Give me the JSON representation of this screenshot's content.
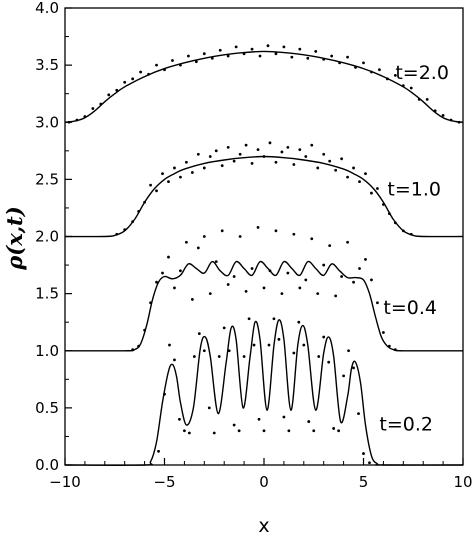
{
  "chart_data": {
    "type": "line",
    "title": "",
    "xlabel": "x",
    "ylabel": "ρ(x,t)",
    "xlim": [
      -10,
      10
    ],
    "ylim": [
      0,
      4
    ],
    "xticks": [
      -10,
      -5,
      0,
      5,
      10
    ],
    "xtick_labels": [
      "−10",
      "−5",
      "0",
      "5",
      "10"
    ],
    "yticks": [
      0,
      0.5,
      1,
      1.5,
      2,
      2.5,
      3,
      3.5,
      4
    ],
    "ytick_labels": [
      "0.0",
      "0.5",
      "1.0",
      "1.5",
      "2.0",
      "2.5",
      "3.0",
      "3.5",
      "4.0"
    ],
    "grid": false,
    "legend": "none",
    "curves": [
      {
        "label": "t=0.2",
        "offset": 0.0,
        "label_at": {
          "x": 5.8,
          "y": 0.3
        },
        "line": {
          "x": [
            -10,
            -6,
            -5.7,
            -5.4,
            -5.1,
            -4.8,
            -4.6,
            -4.4,
            -4.2,
            -3.9,
            -3.55,
            -3.2,
            -2.95,
            -2.7,
            -2.3,
            -1.9,
            -1.65,
            -1.4,
            -1.05,
            -0.7,
            -0.45,
            -0.2,
            0.15,
            0.5,
            0.75,
            1.0,
            1.35,
            1.7,
            1.95,
            2.2,
            2.6,
            3.0,
            3.25,
            3.5,
            3.85,
            4.2,
            4.4,
            4.6,
            4.85,
            5.1,
            5.4,
            5.7,
            6,
            10
          ],
          "y": [
            0,
            0,
            0.03,
            0.2,
            0.55,
            0.82,
            0.88,
            0.78,
            0.55,
            0.35,
            0.5,
            1.02,
            1.12,
            0.95,
            0.45,
            0.9,
            1.2,
            1.1,
            0.5,
            0.95,
            1.25,
            1.1,
            0.48,
            1.05,
            1.27,
            1.1,
            0.48,
            1.05,
            1.22,
            1.05,
            0.48,
            0.98,
            1.12,
            0.95,
            0.38,
            0.6,
            0.85,
            0.9,
            0.72,
            0.35,
            0.08,
            0.01,
            0,
            0
          ]
        },
        "points": {
          "x": [
            -5.3,
            -5.0,
            -4.75,
            -4.5,
            -4.25,
            -4.0,
            -3.75,
            -3.5,
            -3.25,
            -3.0,
            -2.75,
            -2.5,
            -2.25,
            -2.0,
            -1.75,
            -1.5,
            -1.25,
            -1.0,
            -0.75,
            -0.5,
            -0.25,
            0.0,
            0.25,
            0.5,
            0.75,
            1.0,
            1.25,
            1.5,
            1.75,
            2.0,
            2.25,
            2.5,
            2.75,
            3.0,
            3.25,
            3.5,
            3.75,
            4.0,
            4.25,
            4.5,
            4.75,
            5.0,
            5.3
          ],
          "y": [
            0.12,
            0.62,
            1.05,
            0.92,
            0.4,
            0.3,
            0.28,
            0.95,
            1.15,
            1.0,
            0.5,
            0.28,
            0.95,
            1.2,
            1.0,
            0.35,
            0.3,
            0.95,
            1.28,
            1.05,
            0.4,
            0.3,
            1.05,
            1.28,
            1.1,
            0.42,
            0.3,
            0.98,
            1.25,
            1.05,
            0.38,
            0.3,
            0.95,
            1.12,
            0.9,
            0.32,
            0.3,
            0.78,
            1.0,
            0.85,
            0.45,
            0.1,
            0.02
          ]
        }
      },
      {
        "label": "t=0.4",
        "offset": 1.0,
        "label_at": {
          "x": 6.0,
          "y": 1.32
        },
        "line": {
          "x": [
            -10,
            -7,
            -6.5,
            -6.2,
            -5.9,
            -5.6,
            -5.3,
            -5.0,
            -4.6,
            -4.2,
            -3.8,
            -3.4,
            -3.0,
            -2.6,
            -2.2,
            -1.8,
            -1.4,
            -1.0,
            -0.6,
            -0.2,
            0.2,
            0.6,
            1.0,
            1.4,
            1.8,
            2.2,
            2.6,
            3.0,
            3.4,
            3.8,
            4.2,
            4.6,
            5.0,
            5.3,
            5.6,
            5.9,
            6.2,
            6.5,
            7,
            10
          ],
          "y": [
            1.0,
            1.0,
            1.01,
            1.06,
            1.22,
            1.45,
            1.6,
            1.65,
            1.63,
            1.66,
            1.76,
            1.72,
            1.68,
            1.78,
            1.7,
            1.66,
            1.78,
            1.72,
            1.66,
            1.78,
            1.72,
            1.66,
            1.78,
            1.72,
            1.66,
            1.78,
            1.72,
            1.66,
            1.76,
            1.7,
            1.64,
            1.64,
            1.62,
            1.5,
            1.3,
            1.12,
            1.04,
            1.01,
            1.0,
            1.0
          ]
        },
        "points": {
          "x": [
            -6.6,
            -6.3,
            -6.0,
            -5.7,
            -5.4,
            -5.1,
            -4.8,
            -4.5,
            -4.2,
            -3.9,
            -3.6,
            -3.3,
            -3.0,
            -2.7,
            -2.4,
            -2.1,
            -1.8,
            -1.5,
            -1.2,
            -0.9,
            -0.6,
            -0.3,
            0.0,
            0.3,
            0.6,
            0.9,
            1.2,
            1.5,
            1.8,
            2.1,
            2.4,
            2.7,
            3.0,
            3.3,
            3.6,
            3.9,
            4.2,
            4.5,
            4.8,
            5.1,
            5.4,
            5.7,
            6.0,
            6.3,
            6.6
          ],
          "y": [
            1.01,
            1.04,
            1.18,
            1.42,
            1.6,
            1.68,
            1.82,
            1.55,
            1.7,
            1.95,
            1.45,
            1.9,
            2.0,
            1.5,
            1.78,
            2.05,
            1.58,
            1.65,
            2.0,
            1.52,
            1.72,
            2.08,
            1.55,
            1.7,
            2.05,
            1.5,
            1.68,
            2.02,
            1.55,
            1.62,
            1.98,
            1.5,
            1.75,
            1.92,
            1.48,
            1.65,
            1.95,
            1.6,
            1.72,
            1.8,
            1.62,
            1.42,
            1.16,
            1.04,
            1.01
          ]
        }
      },
      {
        "label": "t=1.0",
        "offset": 2.0,
        "label_at": {
          "x": 6.2,
          "y": 2.36
        },
        "line": {
          "x": [
            -10,
            -8,
            -7.5,
            -7.0,
            -6.5,
            -6.0,
            -5.5,
            -5.0,
            -4.5,
            -4.0,
            -3.0,
            -2.0,
            -1.0,
            0.0,
            1.0,
            2.0,
            3.0,
            4.0,
            4.5,
            5.0,
            5.5,
            6.0,
            6.5,
            7.0,
            7.5,
            8.0,
            10
          ],
          "y": [
            2.0,
            2.0,
            2.01,
            2.05,
            2.15,
            2.3,
            2.42,
            2.5,
            2.55,
            2.59,
            2.64,
            2.67,
            2.69,
            2.7,
            2.69,
            2.67,
            2.64,
            2.59,
            2.55,
            2.5,
            2.42,
            2.3,
            2.15,
            2.05,
            2.01,
            2.0,
            2.0
          ]
        },
        "points": {
          "x": [
            -7.4,
            -7.0,
            -6.6,
            -6.3,
            -6.0,
            -5.7,
            -5.4,
            -5.1,
            -4.8,
            -4.5,
            -4.2,
            -3.9,
            -3.6,
            -3.3,
            -3.0,
            -2.7,
            -2.4,
            -2.1,
            -1.8,
            -1.5,
            -1.2,
            -0.9,
            -0.6,
            -0.3,
            0.0,
            0.3,
            0.6,
            0.9,
            1.2,
            1.5,
            1.8,
            2.1,
            2.4,
            2.7,
            3.0,
            3.3,
            3.6,
            3.9,
            4.2,
            4.5,
            4.8,
            5.1,
            5.4,
            5.7,
            6.0,
            6.3,
            6.6,
            7.0,
            7.4
          ],
          "y": [
            2.02,
            2.06,
            2.13,
            2.22,
            2.3,
            2.45,
            2.4,
            2.55,
            2.48,
            2.6,
            2.52,
            2.65,
            2.56,
            2.72,
            2.6,
            2.7,
            2.75,
            2.62,
            2.78,
            2.66,
            2.72,
            2.8,
            2.64,
            2.76,
            2.7,
            2.82,
            2.65,
            2.74,
            2.78,
            2.63,
            2.76,
            2.7,
            2.8,
            2.6,
            2.72,
            2.66,
            2.58,
            2.68,
            2.52,
            2.6,
            2.48,
            2.55,
            2.38,
            2.42,
            2.28,
            2.2,
            2.12,
            2.05,
            2.02
          ]
        }
      },
      {
        "label": "t=2.0",
        "offset": 3.0,
        "label_at": {
          "x": 6.6,
          "y": 3.38
        },
        "line": {
          "x": [
            -10,
            -9.5,
            -9.0,
            -8.5,
            -8.0,
            -7.5,
            -7.0,
            -6.0,
            -5.0,
            -4.0,
            -3.0,
            -2.0,
            -1.0,
            0.0,
            1.0,
            2.0,
            3.0,
            4.0,
            5.0,
            6.0,
            7.0,
            7.5,
            8.0,
            8.5,
            9.0,
            9.5,
            10
          ],
          "y": [
            3.0,
            3.01,
            3.04,
            3.1,
            3.18,
            3.25,
            3.31,
            3.4,
            3.47,
            3.52,
            3.56,
            3.59,
            3.61,
            3.62,
            3.61,
            3.59,
            3.56,
            3.52,
            3.47,
            3.4,
            3.31,
            3.25,
            3.18,
            3.1,
            3.04,
            3.01,
            3.0
          ]
        },
        "points": {
          "x": [
            -9.8,
            -9.4,
            -9.0,
            -8.6,
            -8.2,
            -7.8,
            -7.4,
            -7.0,
            -6.6,
            -6.2,
            -5.8,
            -5.4,
            -5.0,
            -4.6,
            -4.2,
            -3.8,
            -3.4,
            -3.0,
            -2.6,
            -2.2,
            -1.8,
            -1.4,
            -1.0,
            -0.6,
            -0.2,
            0.2,
            0.6,
            1.0,
            1.4,
            1.8,
            2.2,
            2.6,
            3.0,
            3.4,
            3.8,
            4.2,
            4.6,
            5.0,
            5.4,
            5.8,
            6.2,
            6.6,
            7.0,
            7.4,
            7.8,
            8.2,
            8.6,
            9.0,
            9.4,
            9.8
          ],
          "y": [
            3.0,
            3.02,
            3.05,
            3.12,
            3.16,
            3.24,
            3.28,
            3.35,
            3.38,
            3.44,
            3.42,
            3.5,
            3.46,
            3.54,
            3.5,
            3.58,
            3.53,
            3.6,
            3.56,
            3.63,
            3.58,
            3.66,
            3.6,
            3.64,
            3.58,
            3.67,
            3.6,
            3.66,
            3.57,
            3.64,
            3.56,
            3.62,
            3.55,
            3.58,
            3.52,
            3.57,
            3.48,
            3.52,
            3.44,
            3.46,
            3.38,
            3.41,
            3.32,
            3.3,
            3.2,
            3.2,
            3.1,
            3.06,
            3.02,
            3.0
          ]
        }
      }
    ]
  }
}
